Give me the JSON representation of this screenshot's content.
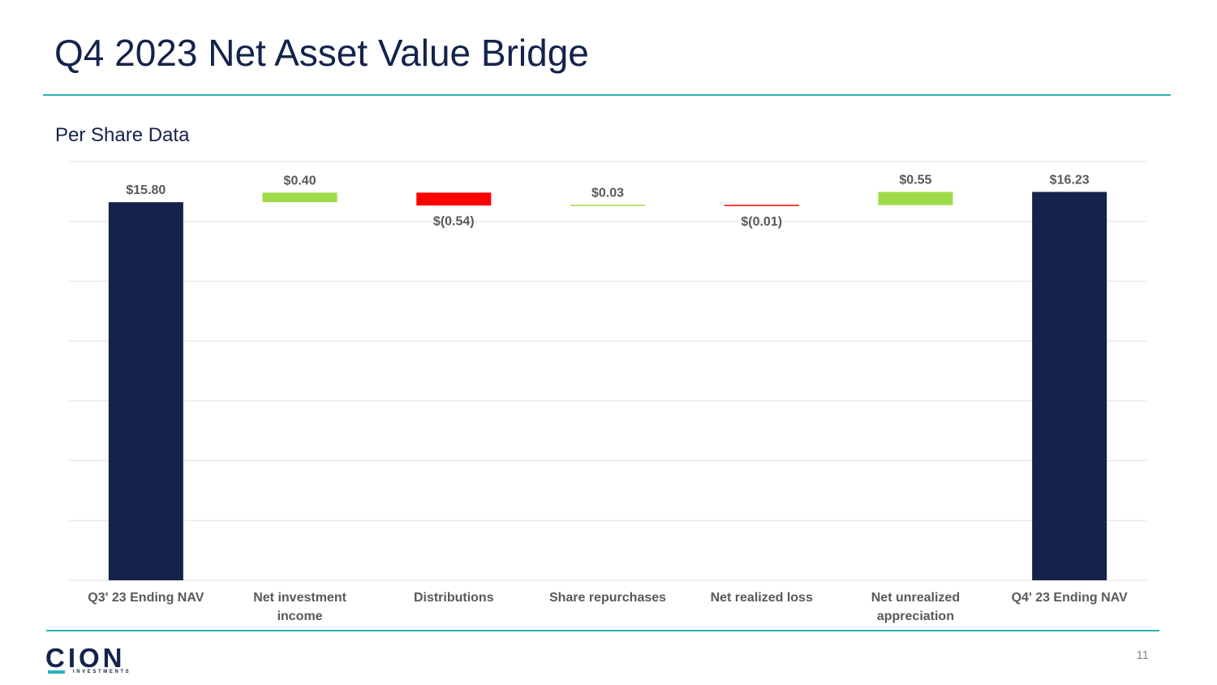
{
  "page": {
    "title": "Q4 2023 Net Asset Value Bridge",
    "subtitle": "Per Share Data",
    "page_number": "11"
  },
  "logo": {
    "wordmark": "CION",
    "tagline": "INVESTMENTS"
  },
  "colors": {
    "navy": "#14234b",
    "increase": "#9edb4a",
    "decrease": "#ff0000",
    "teal": "#2ab3b8",
    "gridline": "#e2e2e2",
    "label": "#595959"
  },
  "chart_data": {
    "type": "bar",
    "subtype": "waterfall",
    "title": "Per Share Data",
    "xlabel": "",
    "ylabel": "",
    "grid": true,
    "legend": "none",
    "ylim": [
      0,
      17.5
    ],
    "categories": [
      [
        "Q3' 23 Ending NAV"
      ],
      [
        "Net investment",
        "income"
      ],
      [
        "Distributions"
      ],
      [
        "Share repurchases"
      ],
      [
        "Net realized loss"
      ],
      [
        "Net unrealized",
        "appreciation"
      ],
      [
        "Q4' 23 Ending NAV"
      ]
    ],
    "values": [
      15.8,
      0.4,
      -0.54,
      0.03,
      -0.01,
      0.55,
      16.23
    ],
    "kinds": [
      "total",
      "increase",
      "decrease",
      "increase",
      "decrease",
      "increase",
      "total"
    ],
    "data_labels": [
      "$15.80",
      "$0.40",
      "$(0.54)",
      "$0.03",
      "$(0.01)",
      "$0.55",
      "$16.23"
    ]
  }
}
